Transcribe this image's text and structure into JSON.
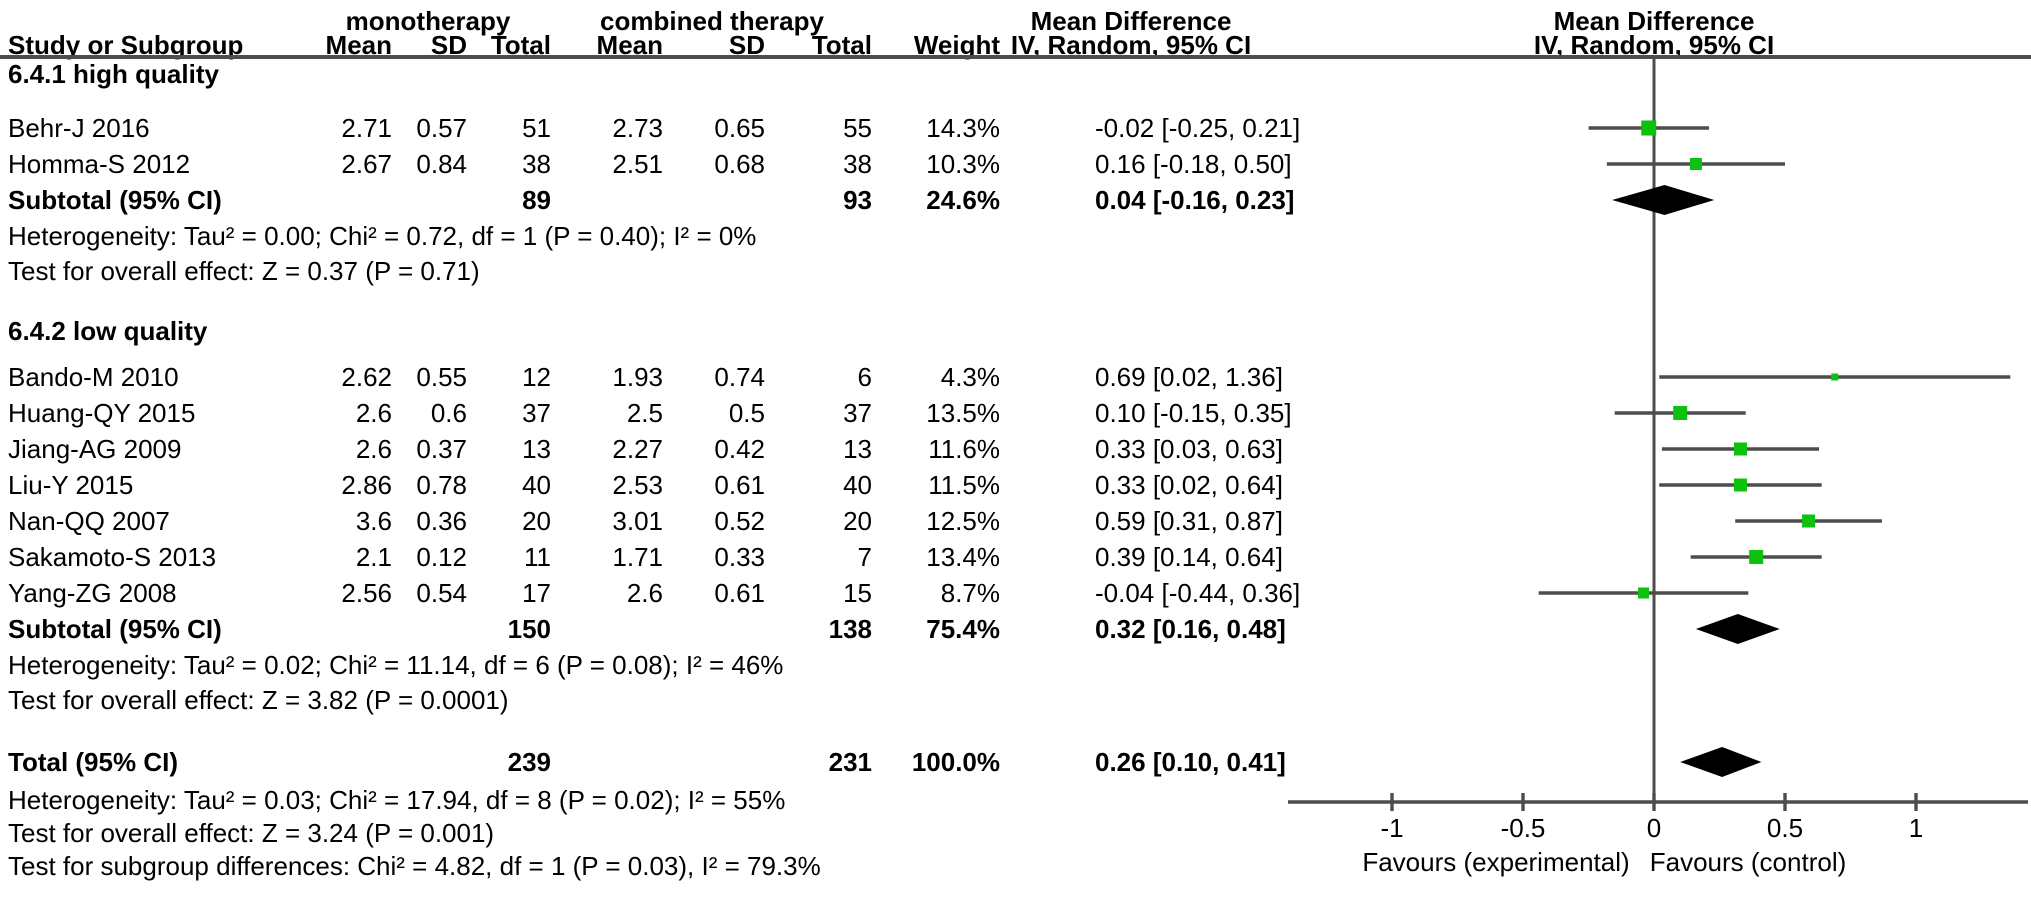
{
  "header": {
    "group1": "monotherapy",
    "group2": "combined therapy",
    "study_col": "Study or Subgroup",
    "mean_col": "Mean",
    "sd_col": "SD",
    "total_col": "Total",
    "weight_col": "Weight",
    "md_col": {
      "line1": "Mean Difference",
      "line2": "IV, Random, 95% CI"
    },
    "plot_col": {
      "line1": "Mean Difference",
      "line2": "IV, Random, 95% CI"
    }
  },
  "chart_data": {
    "type": "forest",
    "effect_measure": "Mean Difference, IV, Random, 95% CI",
    "axis": {
      "ticks": [
        -1,
        -0.5,
        0,
        0.5,
        1
      ],
      "tick_labels": [
        "-1",
        "-0.5",
        "0",
        "0.5",
        "1"
      ],
      "xlim": [
        -1.4,
        1.43
      ],
      "favours_left": "Favours (experimental)",
      "favours_right": "Favours (control)"
    },
    "groups": [
      {
        "label": "6.4.1 high quality",
        "studies": [
          {
            "name": "Behr-J 2016",
            "mean1": "2.71",
            "sd1": "0.57",
            "n1": "51",
            "mean2": "2.73",
            "sd2": "0.65",
            "n2": "55",
            "weight": "14.3%",
            "weight_val": 14.3,
            "ci_text": "-0.02 [-0.25, 0.21]",
            "md": -0.02,
            "lo": -0.25,
            "hi": 0.21
          },
          {
            "name": "Homma-S 2012",
            "mean1": "2.67",
            "sd1": "0.84",
            "n1": "38",
            "mean2": "2.51",
            "sd2": "0.68",
            "n2": "38",
            "weight": "10.3%",
            "weight_val": 10.3,
            "ci_text": "0.16 [-0.18, 0.50]",
            "md": 0.16,
            "lo": -0.18,
            "hi": 0.5
          }
        ],
        "subtotal": {
          "label": "Subtotal (95% CI)",
          "n1": "89",
          "n2": "93",
          "weight": "24.6%",
          "ci_text": "0.04 [-0.16, 0.23]",
          "md": 0.04,
          "lo": -0.16,
          "hi": 0.23
        },
        "heterogeneity": "Heterogeneity: Tau² = 0.00; Chi² = 0.72, df = 1 (P = 0.40); I² = 0%",
        "overall_effect": "Test for overall effect: Z = 0.37 (P = 0.71)"
      },
      {
        "label": "6.4.2 low quality",
        "studies": [
          {
            "name": "Bando-M 2010",
            "mean1": "2.62",
            "sd1": "0.55",
            "n1": "12",
            "mean2": "1.93",
            "sd2": "0.74",
            "n2": "6",
            "weight": "4.3%",
            "weight_val": 4.3,
            "ci_text": "0.69 [0.02, 1.36]",
            "md": 0.69,
            "lo": 0.02,
            "hi": 1.36
          },
          {
            "name": "Huang-QY 2015",
            "mean1": "2.6",
            "sd1": "0.6",
            "n1": "37",
            "mean2": "2.5",
            "sd2": "0.5",
            "n2": "37",
            "weight": "13.5%",
            "weight_val": 13.5,
            "ci_text": "0.10 [-0.15, 0.35]",
            "md": 0.1,
            "lo": -0.15,
            "hi": 0.35
          },
          {
            "name": "Jiang-AG 2009",
            "mean1": "2.6",
            "sd1": "0.37",
            "n1": "13",
            "mean2": "2.27",
            "sd2": "0.42",
            "n2": "13",
            "weight": "11.6%",
            "weight_val": 11.6,
            "ci_text": "0.33 [0.03, 0.63]",
            "md": 0.33,
            "lo": 0.03,
            "hi": 0.63
          },
          {
            "name": "Liu-Y 2015",
            "mean1": "2.86",
            "sd1": "0.78",
            "n1": "40",
            "mean2": "2.53",
            "sd2": "0.61",
            "n2": "40",
            "weight": "11.5%",
            "weight_val": 11.5,
            "ci_text": "0.33 [0.02, 0.64]",
            "md": 0.33,
            "lo": 0.02,
            "hi": 0.64
          },
          {
            "name": "Nan-QQ 2007",
            "mean1": "3.6",
            "sd1": "0.36",
            "n1": "20",
            "mean2": "3.01",
            "sd2": "0.52",
            "n2": "20",
            "weight": "12.5%",
            "weight_val": 12.5,
            "ci_text": "0.59 [0.31, 0.87]",
            "md": 0.59,
            "lo": 0.31,
            "hi": 0.87
          },
          {
            "name": "Sakamoto-S 2013",
            "mean1": "2.1",
            "sd1": "0.12",
            "n1": "11",
            "mean2": "1.71",
            "sd2": "0.33",
            "n2": "7",
            "weight": "13.4%",
            "weight_val": 13.4,
            "ci_text": "0.39 [0.14, 0.64]",
            "md": 0.39,
            "lo": 0.14,
            "hi": 0.64
          },
          {
            "name": "Yang-ZG 2008",
            "mean1": "2.56",
            "sd1": "0.54",
            "n1": "17",
            "mean2": "2.6",
            "sd2": "0.61",
            "n2": "15",
            "weight": "8.7%",
            "weight_val": 8.7,
            "ci_text": "-0.04 [-0.44, 0.36]",
            "md": -0.04,
            "lo": -0.44,
            "hi": 0.36
          }
        ],
        "subtotal": {
          "label": "Subtotal (95% CI)",
          "n1": "150",
          "n2": "138",
          "weight": "75.4%",
          "ci_text": "0.32 [0.16, 0.48]",
          "md": 0.32,
          "lo": 0.16,
          "hi": 0.48
        },
        "heterogeneity": "Heterogeneity: Tau² = 0.02; Chi² = 11.14, df = 6 (P = 0.08); I² = 46%",
        "overall_effect": "Test for overall effect: Z = 3.82 (P = 0.0001)"
      }
    ],
    "total": {
      "label": "Total (95% CI)",
      "n1": "239",
      "n2": "231",
      "weight": "100.0%",
      "ci_text": "0.26 [0.10, 0.41]",
      "md": 0.26,
      "lo": 0.1,
      "hi": 0.41
    },
    "total_heterogeneity": "Heterogeneity: Tau² = 0.03; Chi² = 17.94, df = 8 (P = 0.02); I² = 55%",
    "total_overall_effect": "Test for overall effect: Z = 3.24 (P = 0.001)",
    "subgroup_differences": "Test for subgroup differences: Chi² = 4.82, df = 1 (P = 0.03), I² = 79.3%"
  },
  "colors": {
    "marker_green": "#0cc20c",
    "diamond_black": "#000000",
    "line_gray": "#4d4d4d",
    "text_black": "#000000",
    "background": "#ffffff"
  }
}
